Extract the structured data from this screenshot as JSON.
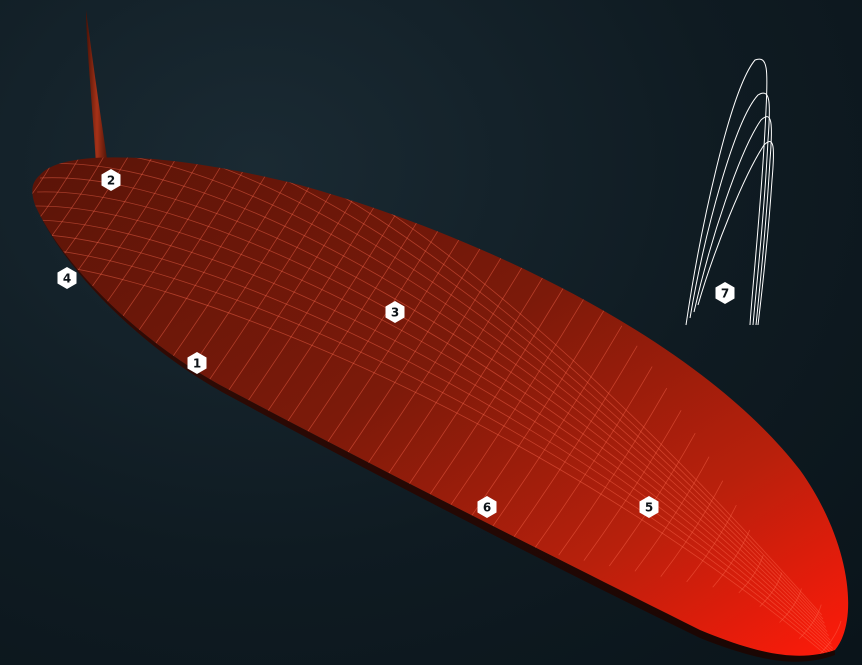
{
  "diagram": {
    "colors": {
      "background": "#0f1b22",
      "board_dark": "#5a1408",
      "board_mid": "#8a1c0a",
      "board_bright": "#ff1a0a",
      "grid_line": "#ff6a50",
      "fin_lines": "#ffffff",
      "marker_fill": "#ffffff"
    },
    "markers": [
      {
        "id": "1",
        "label": "1"
      },
      {
        "id": "2",
        "label": "2"
      },
      {
        "id": "3",
        "label": "3"
      },
      {
        "id": "4",
        "label": "4"
      },
      {
        "id": "5",
        "label": "5"
      },
      {
        "id": "6",
        "label": "6"
      },
      {
        "id": "7",
        "label": "7"
      }
    ]
  }
}
